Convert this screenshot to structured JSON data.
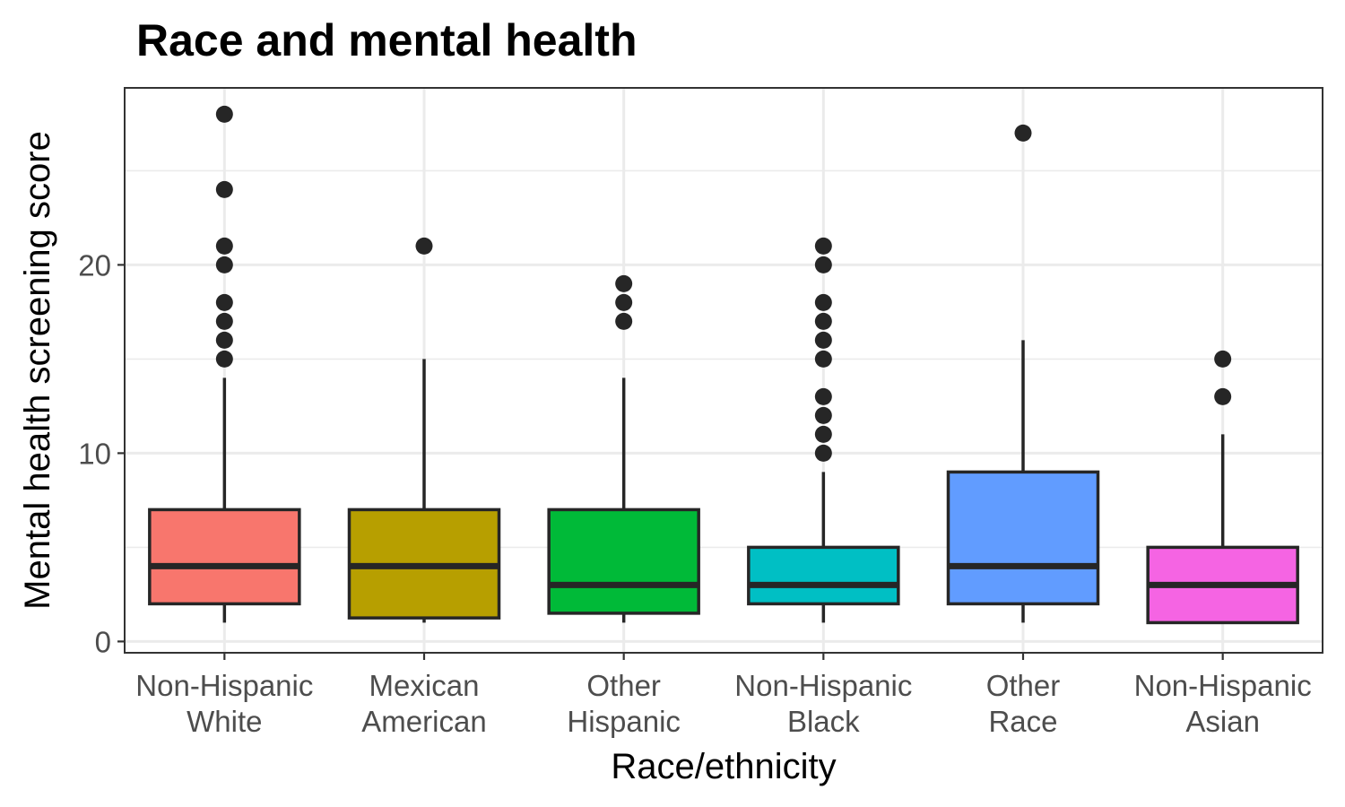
{
  "chart_data": {
    "type": "box",
    "title": "Race and mental health",
    "xlabel": "Race/ethnicity",
    "ylabel": "Mental health screening score",
    "ylim": [
      -0.6,
      29.4
    ],
    "y_ticks": [
      0,
      10,
      20
    ],
    "y_minor_ticks": [
      5,
      15,
      25
    ],
    "grid": true,
    "legend": "none",
    "categories": [
      {
        "label_line1": "Non-Hispanic",
        "label_line2": "White",
        "color": "#F8766D",
        "q1": 2,
        "median": 4,
        "q3": 7,
        "whisker_low": 1,
        "whisker_high": 14,
        "outliers": [
          15,
          16,
          17,
          18,
          20,
          21,
          24,
          28
        ]
      },
      {
        "label_line1": "Mexican",
        "label_line2": "American",
        "color": "#B79F00",
        "q1": 1.25,
        "median": 4,
        "q3": 7,
        "whisker_low": 1,
        "whisker_high": 15,
        "outliers": [
          21
        ]
      },
      {
        "label_line1": "Other",
        "label_line2": "Hispanic",
        "color": "#00BA38",
        "q1": 1.5,
        "median": 3,
        "q3": 7,
        "whisker_low": 1,
        "whisker_high": 14,
        "outliers": [
          17,
          18,
          19
        ]
      },
      {
        "label_line1": "Non-Hispanic",
        "label_line2": "Black",
        "color": "#00BFC4",
        "q1": 2,
        "median": 3,
        "q3": 5,
        "whisker_low": 1,
        "whisker_high": 9,
        "outliers": [
          10,
          11,
          12,
          13,
          15,
          16,
          17,
          18,
          20,
          21
        ]
      },
      {
        "label_line1": "Other",
        "label_line2": "Race",
        "color": "#619CFF",
        "q1": 2,
        "median": 4,
        "q3": 9,
        "whisker_low": 1,
        "whisker_high": 16,
        "outliers": [
          27
        ]
      },
      {
        "label_line1": "Non-Hispanic",
        "label_line2": "Asian",
        "color": "#F564E3",
        "q1": 1,
        "median": 3,
        "q3": 5,
        "whisker_low": 1,
        "whisker_high": 11,
        "outliers": [
          13,
          15
        ]
      }
    ]
  }
}
